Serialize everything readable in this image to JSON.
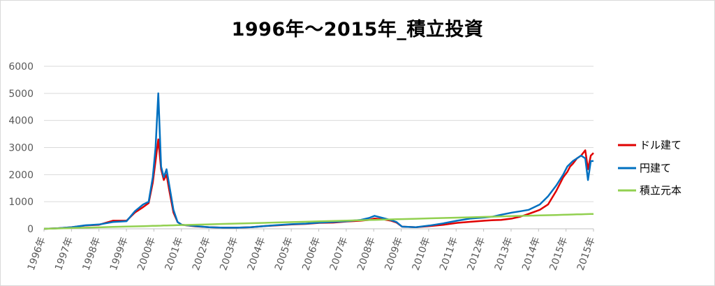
{
  "chart_data": {
    "type": "line",
    "title": "1996年～2015年_積立投資",
    "xlabel": "",
    "ylabel": "",
    "ylim": [
      0,
      6000
    ],
    "yticks": [
      "0",
      "1000",
      "2000",
      "3000",
      "4000",
      "5000",
      "6000"
    ],
    "x_tick_labels": [
      "1996年",
      "1997年",
      "1998年",
      "1999年",
      "2000年",
      "2001年",
      "2002年",
      "2003年",
      "2004年",
      "2005年",
      "2006年",
      "2007年",
      "2008年",
      "2009年",
      "2010年",
      "2011年",
      "2012年",
      "2013年",
      "2014年",
      "2015年",
      "2015年"
    ],
    "grid": true,
    "legend_position": "right",
    "x": [
      1996.0,
      1996.5,
      1997.0,
      1997.5,
      1998.0,
      1998.5,
      1999.0,
      1999.3,
      1999.6,
      1999.8,
      1999.95,
      2000.05,
      2000.15,
      2000.25,
      2000.35,
      2000.45,
      2000.55,
      2000.7,
      2000.85,
      2001.0,
      2001.5,
      2002.0,
      2002.5,
      2003.0,
      2003.5,
      2004.0,
      2004.5,
      2005.0,
      2005.5,
      2006.0,
      2006.5,
      2007.0,
      2007.5,
      2007.8,
      2008.0,
      2008.3,
      2008.6,
      2008.8,
      2009.0,
      2009.5,
      2010.0,
      2010.5,
      2011.0,
      2011.5,
      2012.0,
      2012.3,
      2012.6,
      2013.0,
      2013.3,
      2013.6,
      2014.0,
      2014.3,
      2014.6,
      2014.85,
      2015.0,
      2015.1,
      2015.2,
      2015.35,
      2015.5,
      2015.65,
      2015.75,
      2015.85,
      2015.95
    ],
    "series": [
      {
        "name": "ドル建て",
        "color": "#e00000",
        "values": [
          0,
          20,
          60,
          120,
          150,
          300,
          300,
          600,
          800,
          950,
          1700,
          2500,
          3300,
          2200,
          1800,
          2000,
          1400,
          600,
          250,
          150,
          90,
          60,
          40,
          40,
          60,
          100,
          130,
          160,
          180,
          220,
          230,
          270,
          300,
          330,
          380,
          350,
          300,
          230,
          80,
          60,
          100,
          150,
          220,
          260,
          300,
          320,
          330,
          380,
          450,
          550,
          700,
          900,
          1400,
          1900,
          2100,
          2300,
          2400,
          2600,
          2700,
          2900,
          2200,
          2700,
          2800
        ]
      },
      {
        "name": "円建て",
        "color": "#0070c0",
        "values": [
          0,
          20,
          60,
          130,
          160,
          250,
          280,
          650,
          900,
          1000,
          1900,
          3000,
          5000,
          2300,
          1900,
          2200,
          1600,
          700,
          250,
          150,
          100,
          60,
          40,
          40,
          60,
          100,
          140,
          170,
          190,
          230,
          250,
          280,
          330,
          400,
          480,
          400,
          320,
          250,
          80,
          60,
          120,
          200,
          300,
          380,
          420,
          450,
          520,
          600,
          650,
          700,
          900,
          1200,
          1600,
          2000,
          2300,
          2400,
          2500,
          2600,
          2700,
          2600,
          1800,
          2500,
          2500
        ]
      },
      {
        "name": "積立元本",
        "color": "#92d050",
        "values": [
          0,
          14,
          28,
          41,
          55,
          69,
          82,
          91,
          99,
          104,
          109,
          112,
          114,
          117,
          120,
          123,
          126,
          130,
          134,
          138,
          151,
          165,
          179,
          193,
          206,
          220,
          234,
          248,
          261,
          275,
          289,
          303,
          316,
          325,
          330,
          338,
          347,
          352,
          358,
          371,
          385,
          399,
          413,
          426,
          440,
          448,
          456,
          468,
          476,
          484,
          495,
          503,
          511,
          518,
          522,
          525,
          528,
          532,
          536,
          540,
          543,
          546,
          549
        ]
      }
    ]
  }
}
